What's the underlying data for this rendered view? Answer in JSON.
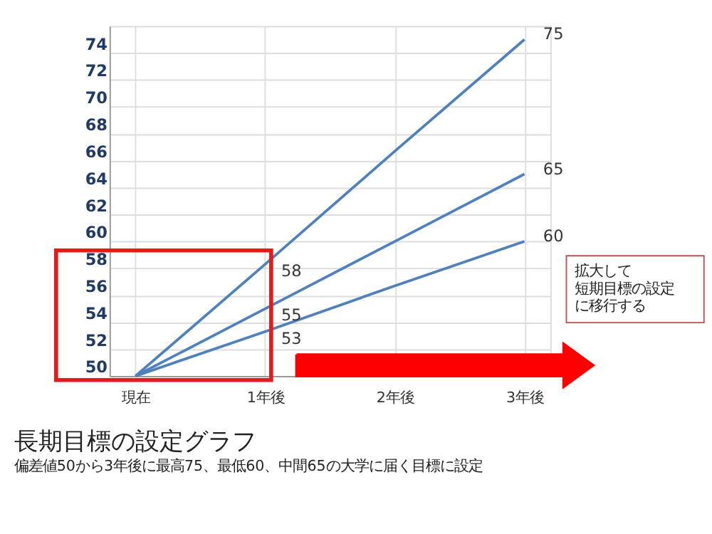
{
  "chart_data": {
    "type": "line",
    "title": "長期目標の設定グラフ",
    "subtitle": "偏差値50から3年後に最高75、最低60、中間65の大学に届く目標に設定",
    "categories": [
      "現在",
      "1年後",
      "2年後",
      "3年後"
    ],
    "series": [
      {
        "color": "#4f81bd",
        "values": [
          50,
          58.3,
          66.7,
          75
        ],
        "value_labels": [
          null,
          "58",
          null,
          "75"
        ]
      },
      {
        "color": "#4f81bd",
        "values": [
          50,
          55,
          60,
          65
        ],
        "value_labels": [
          null,
          "55",
          null,
          "65"
        ]
      },
      {
        "color": "#4f81bd",
        "values": [
          50,
          53.3,
          56.7,
          60
        ],
        "value_labels": [
          null,
          "53",
          null,
          "60"
        ]
      }
    ],
    "ylim": [
      50,
      76
    ],
    "yticks": [
      50,
      52,
      54,
      56,
      58,
      60,
      62,
      64,
      66,
      68,
      70,
      72,
      74
    ],
    "grid": true,
    "legend": false,
    "marker": "none",
    "line_style": "solid",
    "annotations": [
      "拡大して短期目標の設定に移行する"
    ]
  }
}
